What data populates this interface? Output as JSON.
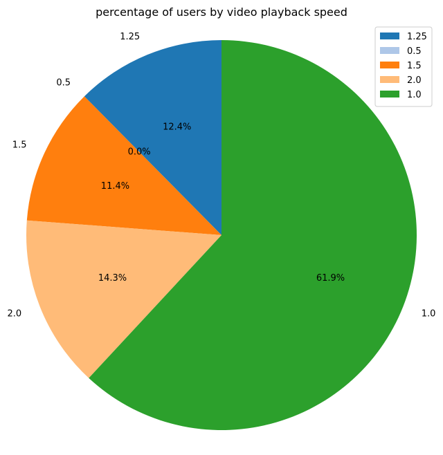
{
  "chart_data": {
    "type": "pie",
    "title": "percentage of users by video playback speed",
    "categories": [
      "1.25",
      "0.5",
      "1.5",
      "2.0",
      "1.0"
    ],
    "values": [
      12.4,
      0.0,
      11.4,
      14.3,
      61.9
    ],
    "value_labels": [
      "12.4%",
      "0.0%",
      "11.4%",
      "14.3%",
      "61.9%"
    ],
    "colors": [
      "#1f77b4",
      "#aec7e8",
      "#ff7f0e",
      "#ffbb78",
      "#2ca02c"
    ],
    "start_angle_deg": 90,
    "direction": "counterclockwise",
    "legend": {
      "placement": "top-right",
      "entries": [
        "1.25",
        "0.5",
        "1.5",
        "2.0",
        "1.0"
      ]
    }
  }
}
